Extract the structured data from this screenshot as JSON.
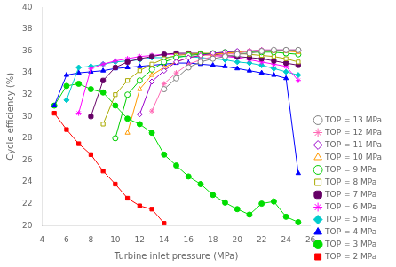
{
  "chart_data": {
    "type": "line",
    "xlabel": "Turbine inlet pressure (MPa)",
    "ylabel": "Cycle efficiency (%)",
    "xlim": [
      4,
      26
    ],
    "ylim": [
      20,
      40
    ],
    "xticks": [
      4,
      6,
      8,
      10,
      12,
      14,
      16,
      18,
      20,
      22,
      24,
      26
    ],
    "yticks": [
      20,
      22,
      24,
      26,
      28,
      30,
      32,
      34,
      36,
      38,
      40
    ],
    "grid": false,
    "legend": "lower right",
    "series": [
      {
        "name": "TOP = 13 MPa",
        "color": "#808080",
        "marker": "open circle",
        "x": [
          14,
          15,
          16,
          17,
          18,
          19,
          20,
          21,
          22,
          23,
          24,
          25
        ],
        "values": [
          32.5,
          33.5,
          34.5,
          35.0,
          35.3,
          35.5,
          35.7,
          35.8,
          36.0,
          36.1,
          36.1,
          36.1
        ]
      },
      {
        "name": "TOP = 12 MPa",
        "color": "#ff69b4",
        "marker": "open star",
        "x": [
          13,
          14,
          15,
          16,
          17,
          18,
          19,
          20,
          21,
          22,
          23,
          24,
          25
        ],
        "values": [
          30.5,
          33.0,
          34.0,
          34.8,
          35.2,
          35.5,
          35.7,
          35.8,
          36.0,
          36.1,
          36.1,
          36.1,
          36.1
        ]
      },
      {
        "name": "TOP = 11 MPa",
        "color": "#9900cc",
        "marker": "open diamond",
        "x": [
          12,
          13,
          14,
          15,
          16,
          17,
          18,
          19,
          20,
          21,
          22,
          23,
          24,
          25
        ],
        "values": [
          30.2,
          33.2,
          34.2,
          35.0,
          35.4,
          35.6,
          35.8,
          35.9,
          36.0,
          36.0,
          36.1,
          36.1,
          36.1,
          36.1
        ]
      },
      {
        "name": "TOP = 10 MPa",
        "color": "#ff9900",
        "marker": "open triangle",
        "x": [
          11,
          12,
          13,
          14,
          15,
          16,
          17,
          18,
          19,
          20,
          21,
          22,
          23,
          24,
          25
        ],
        "values": [
          28.5,
          32.5,
          33.8,
          34.5,
          35.0,
          35.4,
          35.6,
          35.7,
          35.8,
          35.9,
          36.0,
          36.0,
          36.0,
          36.0,
          35.9
        ]
      },
      {
        "name": "TOP = 9 MPa",
        "color": "#00cc00",
        "marker": "open circle",
        "x": [
          10,
          11,
          12,
          13,
          14,
          15,
          16,
          17,
          18,
          19,
          20,
          21,
          22,
          23,
          24,
          25
        ],
        "values": [
          28.0,
          32.0,
          33.3,
          34.3,
          35.0,
          35.4,
          35.6,
          35.7,
          35.8,
          35.9,
          35.9,
          35.9,
          35.9,
          35.9,
          35.8,
          35.7
        ]
      },
      {
        "name": "TOP = 8 MPa",
        "color": "#aaaa00",
        "marker": "open square",
        "x": [
          9,
          10,
          11,
          12,
          13,
          14,
          15,
          16,
          17,
          18,
          19,
          20,
          21,
          22,
          23,
          24,
          25
        ],
        "values": [
          29.3,
          32.0,
          33.3,
          34.2,
          34.8,
          35.3,
          35.6,
          35.7,
          35.8,
          35.8,
          35.8,
          35.8,
          35.7,
          35.6,
          35.5,
          35.3,
          35.0
        ]
      },
      {
        "name": "TOP = 7 MPa",
        "color": "#660066",
        "marker": "pentagon",
        "x": [
          8,
          9,
          10,
          11,
          12,
          13,
          14,
          15,
          16,
          17,
          18,
          19,
          20,
          21,
          22,
          23,
          24,
          25
        ],
        "values": [
          30.0,
          33.3,
          34.5,
          35.0,
          35.3,
          35.5,
          35.7,
          35.8,
          35.8,
          35.8,
          35.7,
          35.6,
          35.5,
          35.4,
          35.3,
          35.1,
          34.9,
          34.7
        ]
      },
      {
        "name": "TOP = 6 MPa",
        "color": "#ff00ff",
        "marker": "star",
        "x": [
          7,
          8,
          9,
          10,
          11,
          12,
          13,
          14,
          15,
          16,
          17,
          18,
          19,
          20,
          21,
          22,
          23,
          24,
          25
        ],
        "values": [
          30.3,
          34.4,
          34.8,
          35.1,
          35.3,
          35.5,
          35.6,
          35.7,
          35.7,
          35.7,
          35.7,
          35.6,
          35.5,
          35.4,
          35.2,
          35.0,
          34.8,
          34.6,
          33.3
        ]
      },
      {
        "name": "TOP = 5 MPa",
        "color": "#00cccc",
        "marker": "diamond",
        "x": [
          6,
          7,
          8,
          9,
          10,
          11,
          12,
          13,
          14,
          15,
          16,
          17,
          18,
          19,
          20,
          21,
          22,
          23,
          24,
          25
        ],
        "values": [
          31.5,
          34.5,
          34.6,
          34.8,
          35.0,
          35.1,
          35.2,
          35.4,
          35.4,
          35.5,
          35.5,
          35.4,
          35.3,
          35.2,
          35.0,
          34.9,
          34.7,
          34.4,
          34.1,
          33.8
        ]
      },
      {
        "name": "TOP = 4 MPa",
        "color": "#0000ff",
        "marker": "triangle",
        "x": [
          5,
          6,
          7,
          8,
          9,
          10,
          11,
          12,
          13,
          14,
          15,
          16,
          17,
          18,
          19,
          20,
          21,
          22,
          23,
          24,
          25
        ],
        "values": [
          31.0,
          33.8,
          34.0,
          34.1,
          34.2,
          34.4,
          34.5,
          34.6,
          34.7,
          34.8,
          34.9,
          34.9,
          34.8,
          34.7,
          34.6,
          34.4,
          34.2,
          34.0,
          33.8,
          33.5,
          24.8
        ]
      },
      {
        "name": "TOP = 3 MPa",
        "color": "#00dd00",
        "marker": "circle",
        "x": [
          5,
          6,
          7,
          8,
          9,
          10,
          11,
          12,
          13,
          14,
          15,
          16,
          17,
          18,
          19,
          20,
          21,
          22,
          23,
          24,
          25
        ],
        "values": [
          31.0,
          32.8,
          33.0,
          32.5,
          32.2,
          31.0,
          29.8,
          29.3,
          28.5,
          26.5,
          25.5,
          24.5,
          23.8,
          22.8,
          22.1,
          21.5,
          21.0,
          22.0,
          22.2,
          20.8,
          20.3
        ]
      },
      {
        "name": "TOP = 2 MPa",
        "color": "#ff0000",
        "marker": "square",
        "x": [
          5,
          6,
          7,
          8,
          9,
          10,
          11,
          12,
          13,
          14
        ],
        "values": [
          30.3,
          28.8,
          27.5,
          26.5,
          25.0,
          23.8,
          22.5,
          21.8,
          21.5,
          20.2
        ]
      }
    ]
  }
}
